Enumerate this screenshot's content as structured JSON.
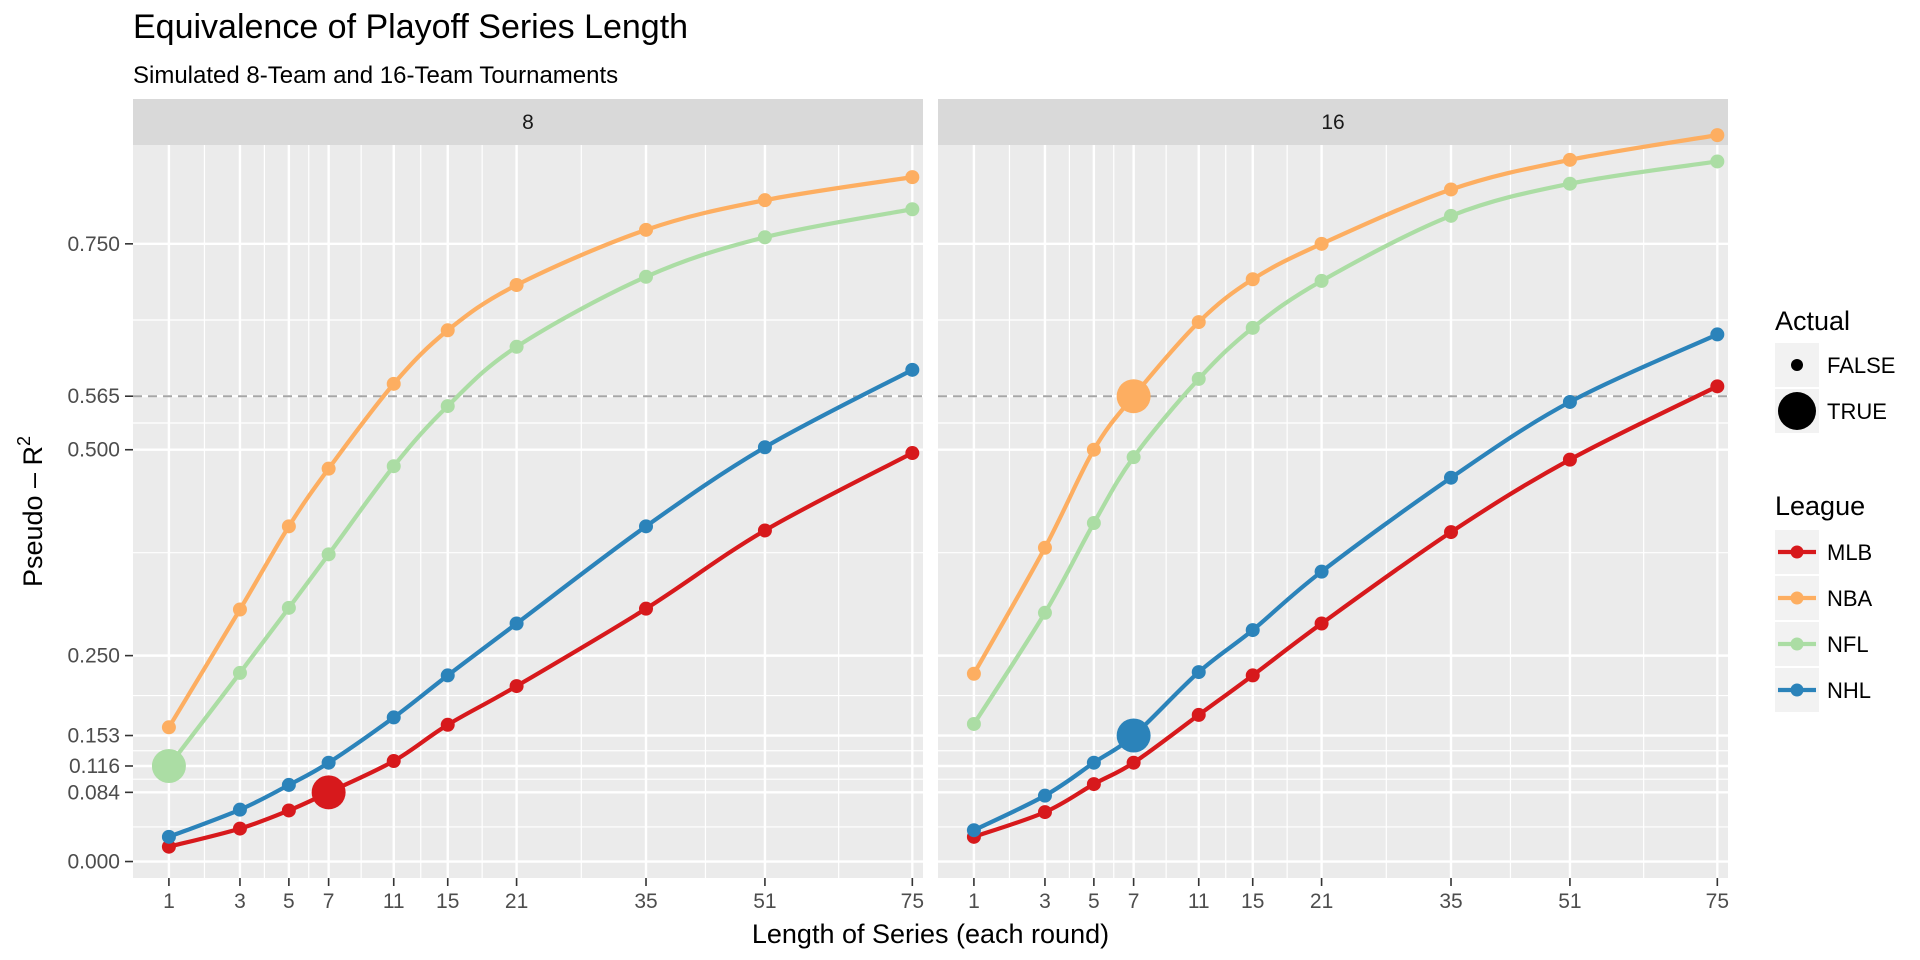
{
  "title": "Equivalence of Playoff Series Length",
  "subtitle": "Simulated 8-Team and 16-Team Tournaments",
  "colors": {
    "MLB": "#d7191c",
    "NBA": "#fdae61",
    "NFL": "#abdda4",
    "NHL": "#2b83ba",
    "panel_bg": "#ebebeb",
    "strip_bg": "#d9d9d9",
    "grid": "#ffffff",
    "reference_line": "#a6a6a6"
  },
  "chart_data": {
    "type": "line",
    "facet_by": "tournament size",
    "facets": [
      "8",
      "16"
    ],
    "x": [
      1,
      3,
      5,
      7,
      11,
      15,
      21,
      35,
      51,
      75
    ],
    "x_ticks": [
      1,
      3,
      5,
      7,
      11,
      15,
      21,
      35,
      51,
      75
    ],
    "xlabel": "Length of Series (each round)",
    "x_scale": "sqrt",
    "xlim": [
      -2.7,
      79
    ],
    "ylabel": "Pseudo – R",
    "ylabel_superscript": "2",
    "ylim": [
      -0.02,
      0.87
    ],
    "y_ticks": [
      "0.000",
      "0.084",
      "0.116",
      "0.153",
      "0.250",
      "0.500",
      "0.565",
      "0.750"
    ],
    "reference_line_y": 0.565,
    "grid": true,
    "series": [
      {
        "facet": "8",
        "name": "MLB",
        "values": [
          0.018,
          0.04,
          0.062,
          0.084,
          0.122,
          0.166,
          0.213,
          0.307,
          0.402,
          0.496
        ]
      },
      {
        "facet": "8",
        "name": "NBA",
        "values": [
          0.163,
          0.306,
          0.407,
          0.477,
          0.58,
          0.645,
          0.7,
          0.767,
          0.803,
          0.831
        ]
      },
      {
        "facet": "8",
        "name": "NFL",
        "values": [
          0.116,
          0.229,
          0.308,
          0.373,
          0.48,
          0.553,
          0.625,
          0.71,
          0.758,
          0.792
        ]
      },
      {
        "facet": "8",
        "name": "NHL",
        "values": [
          0.03,
          0.063,
          0.093,
          0.12,
          0.175,
          0.226,
          0.289,
          0.407,
          0.503,
          0.597
        ]
      },
      {
        "facet": "16",
        "name": "MLB",
        "values": [
          0.03,
          0.06,
          0.094,
          0.12,
          0.178,
          0.226,
          0.289,
          0.4,
          0.488,
          0.577
        ]
      },
      {
        "facet": "16",
        "name": "NBA",
        "values": [
          0.228,
          0.381,
          0.5,
          0.565,
          0.655,
          0.707,
          0.75,
          0.816,
          0.852,
          0.882
        ]
      },
      {
        "facet": "16",
        "name": "NFL",
        "values": [
          0.167,
          0.302,
          0.411,
          0.491,
          0.586,
          0.648,
          0.705,
          0.784,
          0.823,
          0.85
        ]
      },
      {
        "facet": "16",
        "name": "NHL",
        "values": [
          0.038,
          0.08,
          0.12,
          0.153,
          0.23,
          0.281,
          0.352,
          0.466,
          0.558,
          0.64
        ]
      }
    ],
    "actual_points": [
      {
        "facet": "8",
        "league": "NFL",
        "x": 1,
        "y": 0.116
      },
      {
        "facet": "8",
        "league": "MLB",
        "x": 7,
        "y": 0.084
      },
      {
        "facet": "16",
        "league": "NBA",
        "x": 7,
        "y": 0.565
      },
      {
        "facet": "16",
        "league": "NHL",
        "x": 7,
        "y": 0.153
      }
    ],
    "legends": {
      "placement": "right",
      "actual": {
        "title": "Actual",
        "entries": [
          "FALSE",
          "TRUE"
        ]
      },
      "league": {
        "title": "League",
        "entries": [
          "MLB",
          "NBA",
          "NFL",
          "NHL"
        ]
      }
    }
  }
}
